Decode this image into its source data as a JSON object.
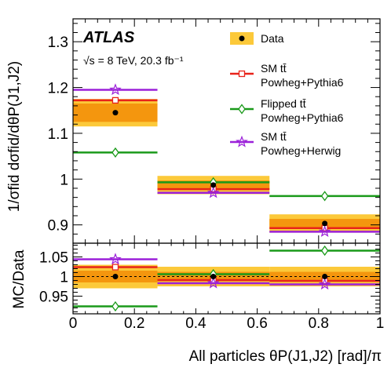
{
  "chart_data": {
    "type": "histogram",
    "experiment": "ATLAS",
    "energy_label": "√s = 8 TeV, 20.3 fb⁻¹",
    "xlabel": "All particles θP(J1,J2) [rad]/π",
    "ylabel_top": "1/σfid dσfid/dθP(J1,J2)",
    "ylabel_bottom": "MC/Data",
    "bin_edges": [
      0,
      0.275,
      0.64,
      1.0
    ],
    "xlim": [
      0,
      1
    ],
    "xticks": [
      "0",
      "0.2",
      "0.4",
      "0.6",
      "0.8",
      "1"
    ],
    "top_panel": {
      "ylim": [
        0.86,
        1.35
      ],
      "yticks": [
        "0.9",
        "1",
        "1.1",
        "1.2",
        "1.3"
      ],
      "data": {
        "name": "Data",
        "x": [
          0.138,
          0.457,
          0.82
        ],
        "values": [
          1.145,
          0.987,
          0.903
        ],
        "stat_band": [
          [
            1.125,
            1.165
          ],
          [
            0.977,
            0.997
          ],
          [
            0.893,
            0.913
          ]
        ],
        "total_band": [
          [
            1.115,
            1.175
          ],
          [
            0.967,
            1.007
          ],
          [
            0.883,
            0.923
          ]
        ]
      },
      "series": [
        {
          "name": "SM tt̄ Powheg+Pythia6",
          "color": "#e8231a",
          "values": [
            1.172,
            0.978,
            0.893
          ],
          "marker": "square"
        },
        {
          "name": "Flipped tt̄ Powheg+Pythia6",
          "color": "#1a9a1a",
          "values": [
            1.058,
            0.993,
            0.963
          ],
          "marker": "diamond"
        },
        {
          "name": "SM tt̄ Powheg+Herwig",
          "color": "#9b20d9",
          "values": [
            1.195,
            0.97,
            0.885
          ],
          "marker": "star"
        }
      ]
    },
    "bottom_panel": {
      "ylim": [
        0.905,
        1.085
      ],
      "yticks": [
        "0.95",
        "1",
        "1.05"
      ],
      "data_band_total": [
        [
          0.97,
          1.03
        ],
        [
          0.975,
          1.025
        ],
        [
          0.975,
          1.025
        ]
      ],
      "data_band_stat": [
        [
          0.985,
          1.015
        ],
        [
          0.988,
          1.012
        ],
        [
          0.988,
          1.012
        ]
      ],
      "series": [
        {
          "name": "SM tt̄ Powheg+Pythia6",
          "color": "#e8231a",
          "values": [
            1.024,
            0.991,
            0.989
          ]
        },
        {
          "name": "Flipped tt̄ Powheg+Pythia6",
          "color": "#1a9a1a",
          "values": [
            0.924,
            1.006,
            1.066
          ]
        },
        {
          "name": "SM tt̄ Powheg+Herwig",
          "color": "#9b20d9",
          "values": [
            1.044,
            0.983,
            0.98
          ]
        }
      ]
    },
    "legend": {
      "position": "top-right",
      "entries": [
        {
          "label": [
            "Data"
          ],
          "style": "data"
        },
        {
          "label": [
            "SM tt̄",
            "Powheg+Pythia6"
          ],
          "style": "red"
        },
        {
          "label": [
            "Flipped tt̄",
            "Powheg+Pythia6"
          ],
          "style": "green"
        },
        {
          "label": [
            "SM tt̄",
            "Powheg+Herwig"
          ],
          "style": "purple"
        }
      ]
    },
    "colors": {
      "band_total": "#fcc93a",
      "band_stat": "#f4960e"
    }
  }
}
